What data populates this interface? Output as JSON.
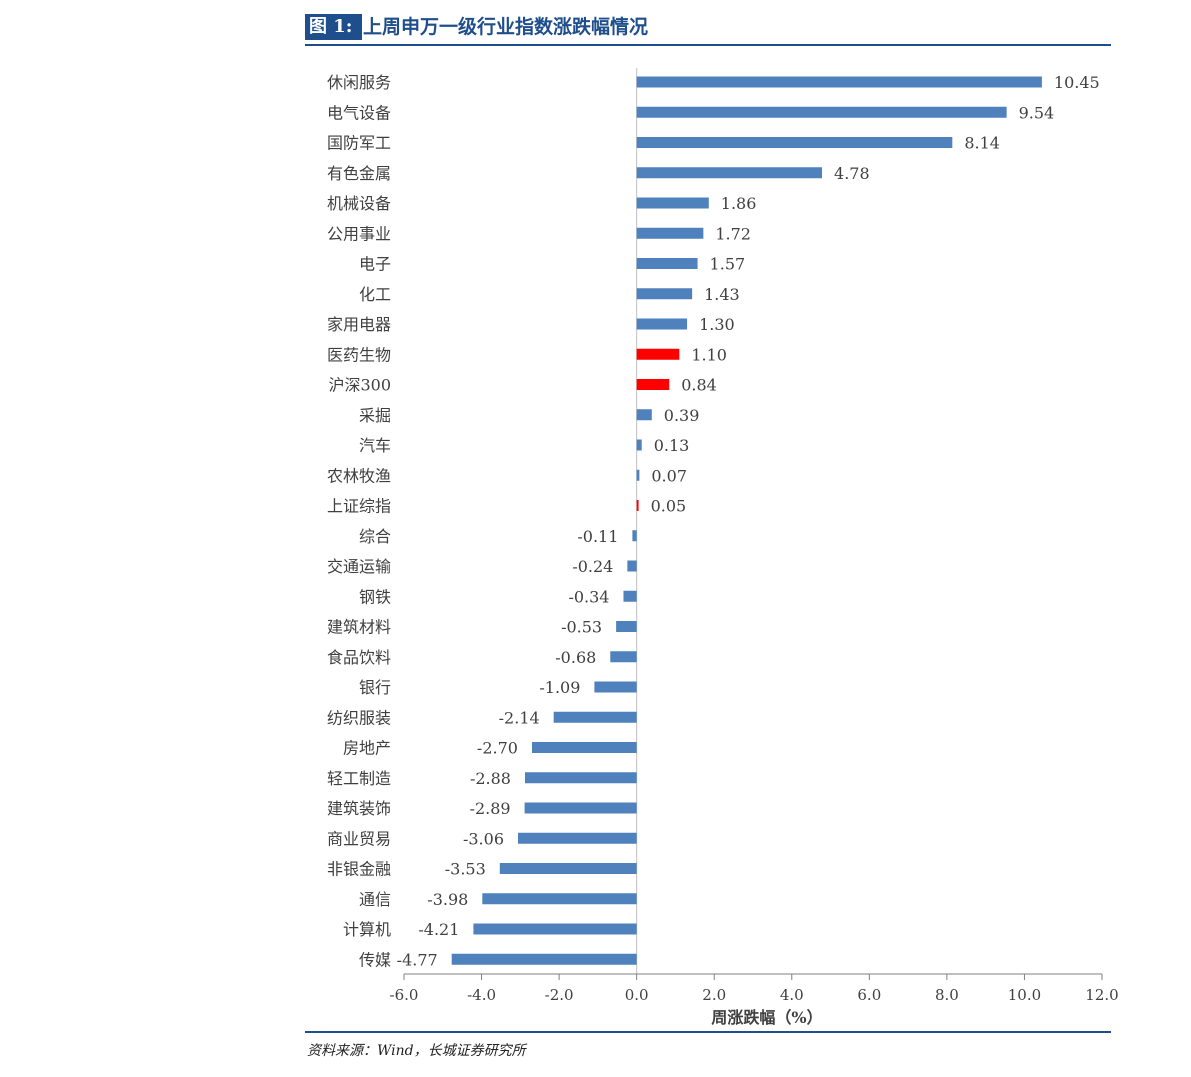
{
  "figure": {
    "tag": "图 1:",
    "title": "上周申万一级行业指数涨跌幅情况",
    "source": "资料来源：Wind，长城证券研究所"
  },
  "chart_data": {
    "type": "bar",
    "orientation": "horizontal",
    "xlabel": "周涨跌幅（%）",
    "xlim": [
      -6.0,
      12.0
    ],
    "xticks": [
      "-6.0",
      "-4.0",
      "-2.0",
      "0.0",
      "2.0",
      "4.0",
      "6.0",
      "8.0",
      "10.0",
      "12.0"
    ],
    "colors": {
      "default": "#4f81bd",
      "highlight": "#ff0000"
    },
    "categories": [
      "休闲服务",
      "电气设备",
      "国防军工",
      "有色金属",
      "机械设备",
      "公用事业",
      "电子",
      "化工",
      "家用电器",
      "医药生物",
      "沪深300",
      "采掘",
      "汽车",
      "农林牧渔",
      "上证综指",
      "综合",
      "交通运输",
      "钢铁",
      "建筑材料",
      "食品饮料",
      "银行",
      "纺织服装",
      "房地产",
      "轻工制造",
      "建筑装饰",
      "商业贸易",
      "非银金融",
      "通信",
      "计算机",
      "传媒"
    ],
    "values": [
      10.45,
      9.54,
      8.14,
      4.78,
      1.86,
      1.72,
      1.57,
      1.43,
      1.3,
      1.1,
      0.84,
      0.39,
      0.13,
      0.07,
      0.05,
      -0.11,
      -0.24,
      -0.34,
      -0.53,
      -0.68,
      -1.09,
      -2.14,
      -2.7,
      -2.88,
      -2.89,
      -3.06,
      -3.53,
      -3.98,
      -4.21,
      -4.77
    ],
    "value_labels": [
      "10.45",
      "9.54",
      "8.14",
      "4.78",
      "1.86",
      "1.72",
      "1.57",
      "1.43",
      "1.30",
      "1.10",
      "0.84",
      "0.39",
      "0.13",
      "0.07",
      "0.05",
      "-0.11",
      "-0.24",
      "-0.34",
      "-0.53",
      "-0.68",
      "-1.09",
      "-2.14",
      "-2.70",
      "-2.88",
      "-2.89",
      "-3.06",
      "-3.53",
      "-3.98",
      "-4.21",
      "-4.77"
    ],
    "highlighted": [
      "医药生物",
      "沪深300",
      "上证综指"
    ]
  }
}
